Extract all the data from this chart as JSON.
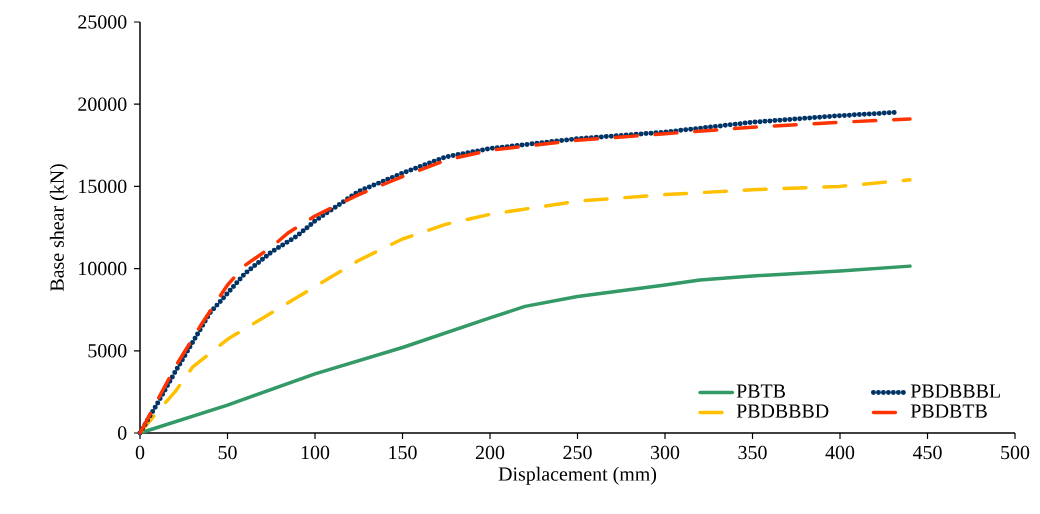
{
  "chart_data": {
    "type": "line",
    "xlabel": "Displacement (mm)",
    "ylabel": "Base shear (kN)",
    "xlim": [
      0,
      500
    ],
    "ylim": [
      0,
      25000
    ],
    "xticks": [
      0,
      50,
      100,
      150,
      200,
      250,
      300,
      350,
      400,
      450,
      500
    ],
    "yticks": [
      0,
      5000,
      10000,
      15000,
      20000,
      25000
    ],
    "grid": false,
    "legend": "bottom right",
    "marker": "none",
    "series": [
      {
        "name": "PBTB",
        "color": "#339966",
        "line_style": "solid",
        "x": [
          0,
          50,
          100,
          150,
          200,
          220,
          250,
          300,
          320,
          350,
          400,
          440
        ],
        "values": [
          0,
          1700,
          3600,
          5200,
          7000,
          7700,
          8300,
          9000,
          9300,
          9550,
          9850,
          10150
        ]
      },
      {
        "name": "PBDBBBD",
        "color": "#ffc000",
        "line_style": "dashed",
        "x": [
          0,
          10,
          20,
          30,
          50,
          75,
          100,
          125,
          150,
          175,
          200,
          250,
          300,
          350,
          400,
          440
        ],
        "values": [
          0,
          1300,
          2500,
          4000,
          5700,
          7300,
          8900,
          10500,
          11800,
          12700,
          13300,
          14100,
          14500,
          14800,
          15000,
          15400
        ]
      },
      {
        "name": "PBDBBBL",
        "color": "#003366",
        "line_style": "dotted",
        "x": [
          0,
          10,
          20,
          30,
          40,
          50,
          60,
          75,
          90,
          100,
          125,
          150,
          175,
          200,
          250,
          300,
          350,
          400,
          432
        ],
        "values": [
          0,
          1800,
          3700,
          5500,
          7300,
          8500,
          9700,
          11000,
          12000,
          12900,
          14700,
          15800,
          16800,
          17300,
          17900,
          18300,
          18900,
          19300,
          19500
        ]
      },
      {
        "name": "PBDBTB",
        "color": "#ff3300",
        "line_style": "dashed",
        "x": [
          0,
          10,
          20,
          35,
          50,
          60,
          75,
          85,
          100,
          125,
          150,
          175,
          200,
          250,
          300,
          350,
          400,
          440
        ],
        "values": [
          0,
          2000,
          4000,
          6600,
          9000,
          10200,
          11300,
          12200,
          13200,
          14500,
          15600,
          16600,
          17200,
          17800,
          18200,
          18600,
          18900,
          19100
        ]
      }
    ]
  }
}
